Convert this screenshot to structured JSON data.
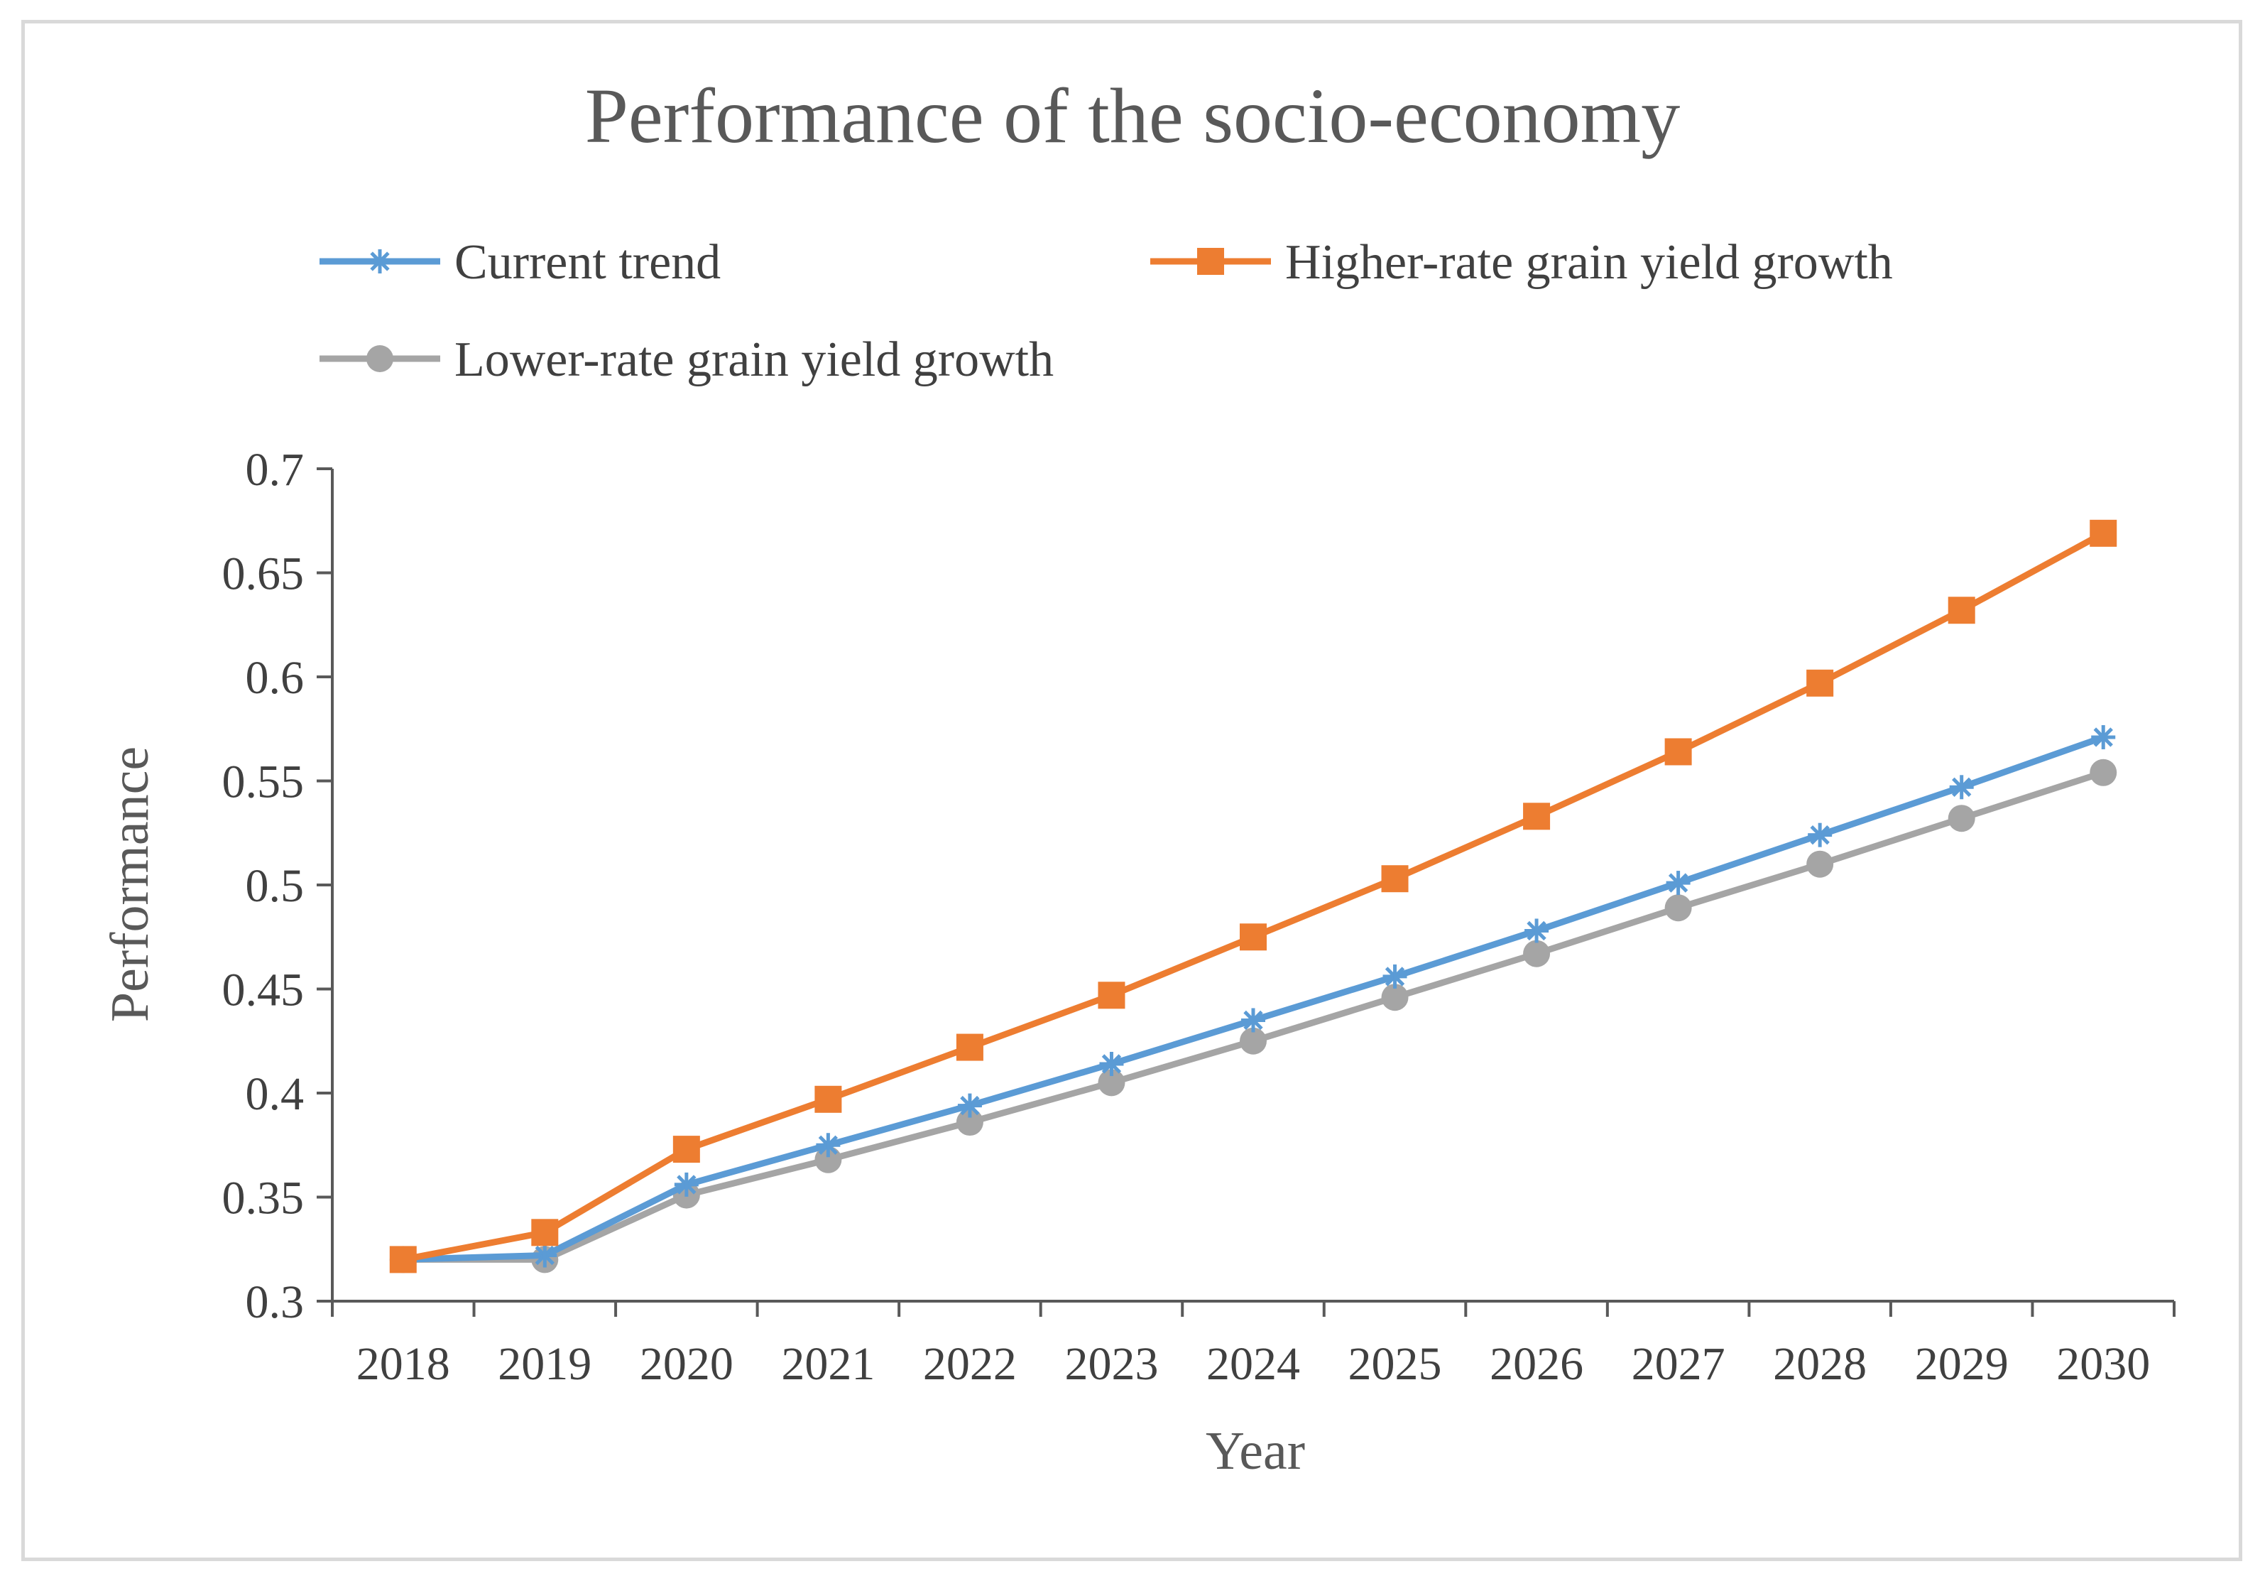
{
  "chart_data": {
    "type": "line",
    "title": "Performance of the socio-economy",
    "xlabel": "Year",
    "ylabel": "Performance",
    "categories": [
      "2018",
      "2019",
      "2020",
      "2021",
      "2022",
      "2023",
      "2024",
      "2025",
      "2026",
      "2027",
      "2028",
      "2029",
      "2030"
    ],
    "ylim": [
      0.3,
      0.7
    ],
    "yticks": [
      0.3,
      0.35,
      0.4,
      0.45,
      0.5,
      0.55,
      0.6,
      0.65,
      0.7
    ],
    "ytick_labels": [
      "0.3",
      "0.35",
      "0.4",
      "0.45",
      "0.5",
      "0.55",
      "0.6",
      "0.65",
      "0.7"
    ],
    "grid": false,
    "legend_position": "top",
    "series": [
      {
        "name": "Current trend",
        "color": "#5b9bd5",
        "marker": "asterisk",
        "values": [
          0.32,
          0.322,
          0.356,
          0.375,
          0.394,
          0.414,
          0.435,
          0.456,
          0.478,
          0.501,
          0.524,
          0.547,
          0.571
        ]
      },
      {
        "name": "Higher-rate grain yield growth",
        "color": "#ed7d31",
        "marker": "square",
        "values": [
          0.32,
          0.333,
          0.373,
          0.397,
          0.422,
          0.447,
          0.475,
          0.503,
          0.533,
          0.564,
          0.597,
          0.632,
          0.669
        ]
      },
      {
        "name": "Lower-rate grain yield growth",
        "color": "#a5a5a5",
        "marker": "circle",
        "values": [
          0.32,
          0.32,
          0.351,
          0.368,
          0.386,
          0.405,
          0.425,
          0.446,
          0.467,
          0.489,
          0.51,
          0.532,
          0.554
        ]
      }
    ]
  }
}
